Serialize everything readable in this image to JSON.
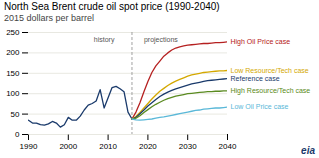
{
  "chart_data": {
    "type": "line",
    "title": "North Sea Brent crude oil spot price (1990-2040)",
    "subtitle": "2015 dollars per barrel",
    "xlim": [
      1990,
      2040
    ],
    "ylim": [
      0,
      250
    ],
    "xticks": [
      1990,
      2000,
      2010,
      2020,
      2030,
      2040
    ],
    "yticks": [
      0,
      50,
      100,
      150,
      200,
      250
    ],
    "grid": "y",
    "series": [
      {
        "color": "#1a3a6b",
        "x": [
          1990,
          1991,
          1992,
          1993,
          1994,
          1995,
          1996,
          1997,
          1998,
          1999,
          2000,
          2001,
          2002,
          2003,
          2004,
          2005,
          2006,
          2007,
          2008,
          2009,
          2010,
          2011,
          2012,
          2013,
          2014,
          2015,
          2016
        ],
        "values": [
          35,
          28,
          28,
          24,
          23,
          26,
          32,
          28,
          18,
          24,
          42,
          35,
          35,
          45,
          60,
          72,
          76,
          82,
          110,
          65,
          90,
          115,
          118,
          112,
          105,
          55,
          38
        ]
      },
      {
        "name": "High Oil Price case",
        "color": "#b52020",
        "x": [
          2016,
          2017,
          2018,
          2019,
          2020,
          2021,
          2022,
          2023,
          2024,
          2025,
          2026,
          2027,
          2028,
          2029,
          2030,
          2031,
          2032,
          2033,
          2034,
          2035,
          2036,
          2037,
          2038,
          2039,
          2040
        ],
        "values": [
          38,
          55,
          78,
          105,
          130,
          152,
          168,
          180,
          192,
          200,
          207,
          212,
          215,
          217,
          219,
          220,
          221,
          222,
          223,
          223,
          224,
          225,
          225,
          226,
          227
        ]
      },
      {
        "name": "Low Resource/Tech case",
        "color": "#d4a800",
        "x": [
          2016,
          2017,
          2018,
          2019,
          2020,
          2021,
          2022,
          2023,
          2024,
          2025,
          2026,
          2027,
          2028,
          2029,
          2030,
          2031,
          2032,
          2033,
          2034,
          2035,
          2036,
          2037,
          2038,
          2039,
          2040
        ],
        "values": [
          38,
          44,
          54,
          65,
          76,
          87,
          97,
          106,
          113,
          120,
          126,
          131,
          135,
          139,
          143,
          146,
          148,
          150,
          152,
          153,
          154,
          155,
          156,
          156,
          157
        ]
      },
      {
        "name": "Reference case",
        "color": "#1a3a6b",
        "x": [
          2016,
          2017,
          2018,
          2019,
          2020,
          2021,
          2022,
          2023,
          2024,
          2025,
          2026,
          2027,
          2028,
          2029,
          2030,
          2031,
          2032,
          2033,
          2034,
          2035,
          2036,
          2037,
          2038,
          2039,
          2040
        ],
        "values": [
          38,
          42,
          51,
          60,
          70,
          78,
          86,
          93,
          99,
          104,
          108,
          112,
          115,
          118,
          121,
          124,
          126,
          128,
          130,
          132,
          133,
          134,
          135,
          136,
          137
        ]
      },
      {
        "name": "High Resource/Tech case",
        "color": "#5a8a20",
        "x": [
          2016,
          2017,
          2018,
          2019,
          2020,
          2021,
          2022,
          2023,
          2024,
          2025,
          2026,
          2027,
          2028,
          2029,
          2030,
          2031,
          2032,
          2033,
          2034,
          2035,
          2036,
          2037,
          2038,
          2039,
          2040
        ],
        "values": [
          38,
          40,
          46,
          54,
          61,
          68,
          74,
          79,
          84,
          88,
          91,
          94,
          96,
          98,
          100,
          101,
          102,
          103,
          104,
          105,
          105,
          106,
          106,
          107,
          107
        ]
      },
      {
        "name": "Low Oil Price case",
        "color": "#5ab8d8",
        "x": [
          2016,
          2017,
          2018,
          2019,
          2020,
          2021,
          2022,
          2023,
          2024,
          2025,
          2026,
          2027,
          2028,
          2029,
          2030,
          2031,
          2032,
          2033,
          2034,
          2035,
          2036,
          2037,
          2038,
          2039,
          2040
        ],
        "values": [
          38,
          36,
          35,
          36,
          37,
          38,
          40,
          42,
          43,
          45,
          47,
          49,
          51,
          53,
          55,
          57,
          59,
          60,
          62,
          63,
          64,
          65,
          65,
          66,
          67
        ]
      }
    ],
    "annotations": [
      {
        "x": 2016,
        "line_style": "dashed"
      },
      {
        "text": "history",
        "x": 2009,
        "y": 240
      },
      {
        "text": "projections",
        "x": 2019,
        "y": 240
      },
      {
        "text": "eia"
      }
    ]
  }
}
